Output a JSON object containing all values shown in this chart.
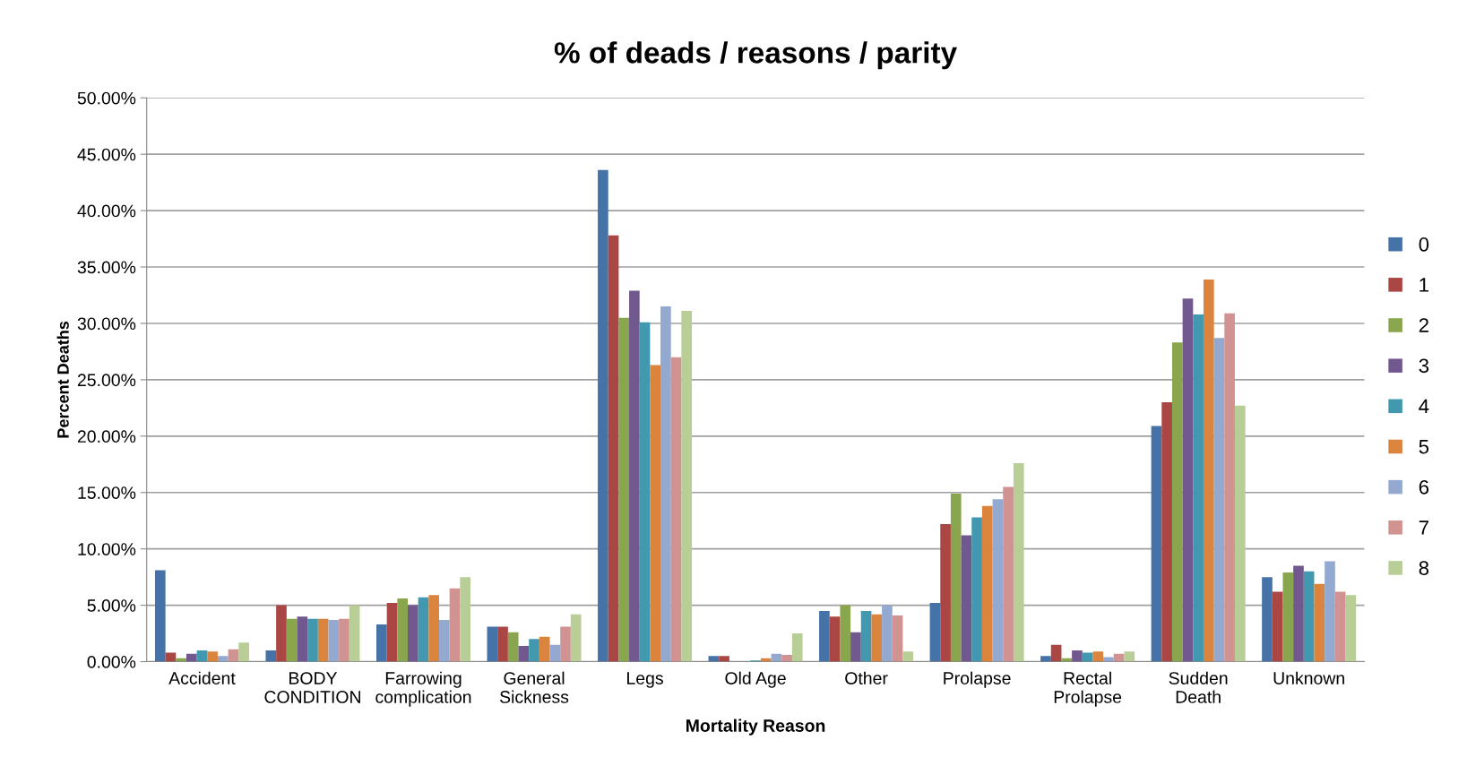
{
  "chart_data": {
    "type": "bar",
    "title": "% of deads / reasons / parity",
    "xlabel": "Mortality Reason",
    "ylabel": "Percent Deaths",
    "categories": [
      "Accident",
      "BODY\nCONDITION",
      "Farrowing\ncomplication",
      "General\nSickness",
      "Legs",
      "Old Age",
      "Other",
      "Prolapse",
      "Rectal\nProlapse",
      "Sudden\nDeath",
      "Unknown"
    ],
    "ylim": [
      0,
      50
    ],
    "yticks": [
      {
        "value": 0,
        "label": "0.00%"
      },
      {
        "value": 5,
        "label": "5.00%"
      },
      {
        "value": 10,
        "label": "10.00%"
      },
      {
        "value": 15,
        "label": "15.00%"
      },
      {
        "value": 20,
        "label": "20.00%"
      },
      {
        "value": 25,
        "label": "25.00%"
      },
      {
        "value": 30,
        "label": "30.00%"
      },
      {
        "value": 35,
        "label": "35.00%"
      },
      {
        "value": 40,
        "label": "40.00%"
      },
      {
        "value": 45,
        "label": "45.00%"
      },
      {
        "value": 50,
        "label": "50.00%"
      }
    ],
    "grid": "y",
    "legend": "right",
    "series": [
      {
        "name": "0",
        "color": "#4572a7",
        "values": [
          8.1,
          1.0,
          3.3,
          3.1,
          43.6,
          0.5,
          4.5,
          5.2,
          0.5,
          20.9,
          7.5
        ]
      },
      {
        "name": "1",
        "color": "#aa4643",
        "values": [
          0.8,
          5.0,
          5.2,
          3.1,
          37.8,
          0.5,
          4.0,
          12.2,
          1.5,
          23.0,
          6.2
        ]
      },
      {
        "name": "2",
        "color": "#89a54e",
        "values": [
          0.3,
          3.8,
          5.6,
          2.6,
          30.5,
          null,
          5.0,
          14.9,
          0.3,
          28.3,
          7.9
        ]
      },
      {
        "name": "3",
        "color": "#71588f",
        "values": [
          0.7,
          4.0,
          5.0,
          1.4,
          32.9,
          null,
          2.6,
          11.2,
          1.0,
          32.2,
          8.5
        ]
      },
      {
        "name": "4",
        "color": "#4198af",
        "values": [
          1.0,
          3.8,
          5.7,
          2.0,
          30.1,
          0.1,
          4.5,
          12.8,
          0.8,
          30.8,
          8.0
        ]
      },
      {
        "name": "5",
        "color": "#db843d",
        "values": [
          0.9,
          3.8,
          5.9,
          2.2,
          26.3,
          0.3,
          4.2,
          13.8,
          0.9,
          33.9,
          6.9
        ]
      },
      {
        "name": "6",
        "color": "#93a9cf",
        "values": [
          0.5,
          3.7,
          3.7,
          1.5,
          31.5,
          0.7,
          5.0,
          14.4,
          0.4,
          28.7,
          8.9
        ]
      },
      {
        "name": "7",
        "color": "#d19392",
        "values": [
          1.1,
          3.8,
          6.5,
          3.1,
          27.0,
          0.6,
          4.1,
          15.5,
          0.7,
          30.9,
          6.2
        ]
      },
      {
        "name": "8",
        "color": "#b9cd96",
        "values": [
          1.7,
          5.0,
          7.5,
          4.2,
          31.1,
          2.5,
          0.9,
          17.6,
          0.9,
          22.7,
          5.9
        ]
      }
    ]
  }
}
